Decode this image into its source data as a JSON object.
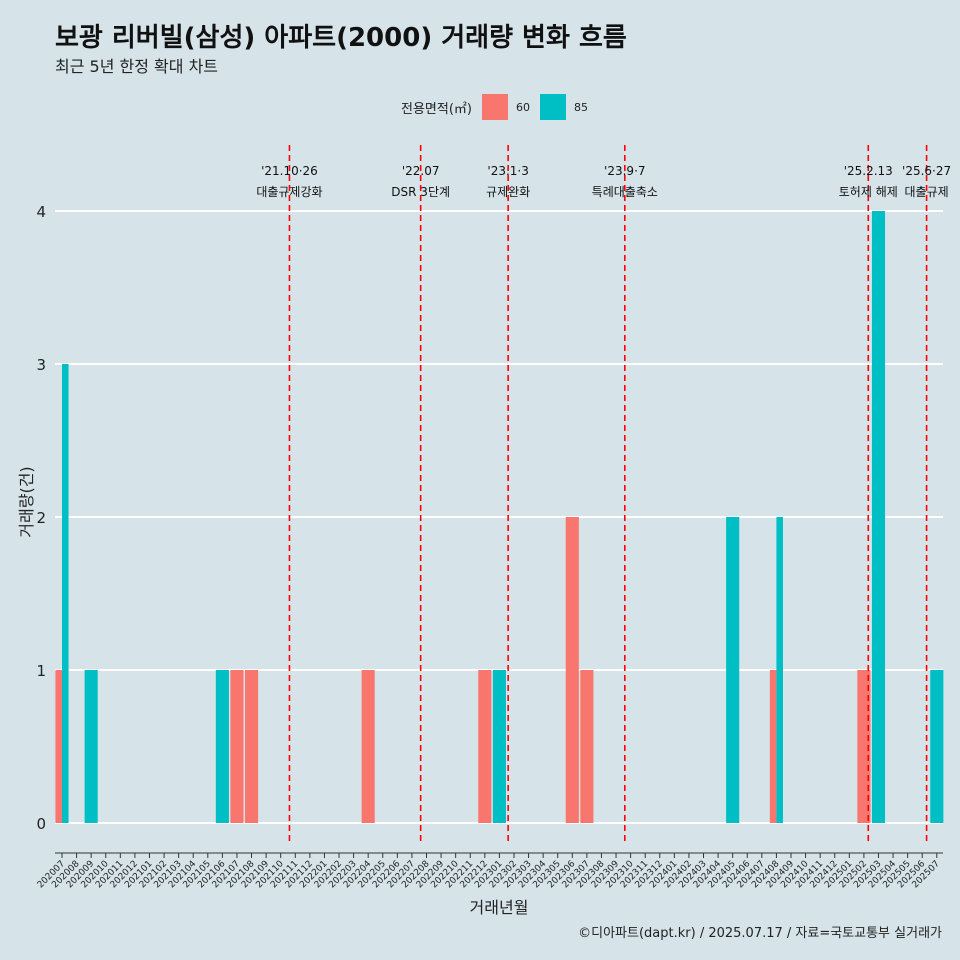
{
  "title": "보광 리버빌(삼성) 아파트(2000) 거래량 변화 흐름",
  "subtitle": "최근 5년 한정 확대 차트",
  "legend": {
    "title": "전용면적(㎡)",
    "items": [
      {
        "label": "60"
      },
      {
        "label": "85"
      }
    ]
  },
  "caption": "©디아파트(dapt.kr) / 2025.07.17 / 자료=국토교통부 실거래가",
  "chart_data": {
    "type": "bar",
    "xlabel": "거래년월",
    "ylabel": "거래량(건)",
    "ylim": [
      0,
      4
    ],
    "yticks": [
      0,
      1,
      2,
      3,
      4
    ],
    "grid": true,
    "legend_position": "top",
    "categories": [
      "202007",
      "202008",
      "202009",
      "202010",
      "202011",
      "202012",
      "202101",
      "202102",
      "202103",
      "202104",
      "202105",
      "202106",
      "202107",
      "202108",
      "202109",
      "202110",
      "202111",
      "202112",
      "202201",
      "202202",
      "202203",
      "202204",
      "202205",
      "202206",
      "202207",
      "202208",
      "202209",
      "202210",
      "202211",
      "202212",
      "202301",
      "202302",
      "202303",
      "202304",
      "202305",
      "202306",
      "202307",
      "202308",
      "202309",
      "202310",
      "202311",
      "202312",
      "202401",
      "202402",
      "202403",
      "202404",
      "202405",
      "202406",
      "202407",
      "202408",
      "202409",
      "202410",
      "202411",
      "202412",
      "202501",
      "202502",
      "202503",
      "202504",
      "202505",
      "202506",
      "202507"
    ],
    "bars": [
      {
        "month": "202007",
        "area": "60",
        "value": 1
      },
      {
        "month": "202007",
        "area": "85",
        "value": 3
      },
      {
        "month": "202009",
        "area": "85",
        "value": 1
      },
      {
        "month": "202106",
        "area": "85",
        "value": 1
      },
      {
        "month": "202107",
        "area": "60",
        "value": 1
      },
      {
        "month": "202108",
        "area": "60",
        "value": 1
      },
      {
        "month": "202204",
        "area": "60",
        "value": 1
      },
      {
        "month": "202212",
        "area": "60",
        "value": 1
      },
      {
        "month": "202301",
        "area": "85",
        "value": 1
      },
      {
        "month": "202306",
        "area": "60",
        "value": 2
      },
      {
        "month": "202307",
        "area": "60",
        "value": 1
      },
      {
        "month": "202405",
        "area": "85",
        "value": 2
      },
      {
        "month": "202408",
        "area": "60",
        "value": 1
      },
      {
        "month": "202408",
        "area": "85",
        "value": 2
      },
      {
        "month": "202502",
        "area": "60",
        "value": 1
      },
      {
        "month": "202503",
        "area": "85",
        "value": 4
      },
      {
        "month": "202507",
        "area": "85",
        "value": 1
      }
    ],
    "annotations": [
      {
        "x": 15.6,
        "date": "'21.10·26",
        "label": "대출규제강화"
      },
      {
        "x": 24.6,
        "date": "'22.07",
        "label": "DSR 3단계"
      },
      {
        "x": 30.6,
        "date": "'23.1·3",
        "label": "규제완화"
      },
      {
        "x": 38.6,
        "date": "'23.9·7",
        "label": "특례대출축소"
      },
      {
        "x": 55.3,
        "date": "'25.2.13",
        "label": "토허제 해제"
      },
      {
        "x": 59.3,
        "date": "'25.6·27",
        "label": "대출규제"
      }
    ]
  },
  "colors": {
    "s60": "#f8766d",
    "s85": "#00bfc4",
    "background": "#d6e4ea",
    "vline": "#ff0000"
  }
}
